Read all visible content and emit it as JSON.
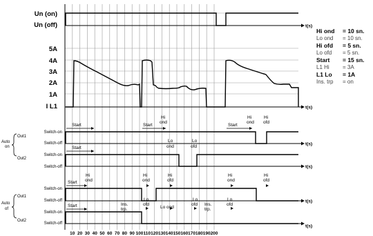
{
  "rows": {
    "un_on": "Un (on)",
    "un_off": "Un (off)",
    "current": [
      "5A",
      "4A",
      "3A",
      "2A",
      "1A",
      "I L1"
    ]
  },
  "time_unit": "t(s)",
  "x_ticks": [
    10,
    20,
    30,
    40,
    50,
    60,
    70,
    80,
    90,
    100,
    110,
    120,
    130,
    140,
    150,
    160,
    170,
    180,
    190,
    200
  ],
  "auto_on": {
    "group_label_1": "Auto",
    "group_label_2": "on",
    "out1": "Out1",
    "out2": "Out2",
    "switch_on": "Switch-on",
    "switch_off": "Switch-off"
  },
  "auto_of": {
    "group_label_1": "Auto",
    "group_label_2": "of",
    "out1": "Out1",
    "out2": "Out2",
    "switch_on": "Switch-on",
    "switch_off": "Switch-off"
  },
  "annotations": {
    "start": "Start",
    "hi": "Hi",
    "ond": "ond",
    "ofd": "ofd",
    "lo": "Lo",
    "ins": "Ins.",
    "trp": "trp.",
    "lo_ond": "Lo ond"
  },
  "params": [
    {
      "key": "Hi ond",
      "value": "= 10 sn.",
      "bold": true
    },
    {
      "key": "Lo ond",
      "value": "= 10 sn.",
      "bold": false
    },
    {
      "key": "Hi ofd",
      "value": "=   5 sn.",
      "bold": true
    },
    {
      "key": "Lo ofd",
      "value": "=   5 sn.",
      "bold": false
    },
    {
      "key": "Start",
      "value": "= 15 sn.",
      "bold": true
    },
    {
      "key": "L1 Hi",
      "value": "= 3A",
      "bold": false
    },
    {
      "key": "L1 Lo",
      "value": "= 1A",
      "bold": true
    },
    {
      "key": "Ins. trp",
      "value": "= on",
      "bold": false
    }
  ]
}
